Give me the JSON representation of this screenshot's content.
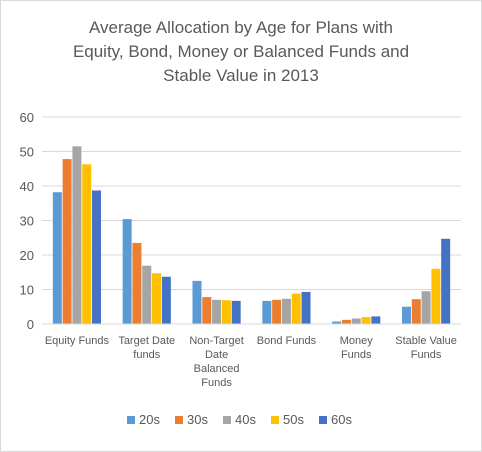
{
  "chart_data": {
    "type": "bar",
    "title_lines": [
      "Average Allocation by Age for Plans with",
      "Equity, Bond, Money or Balanced Funds and",
      "Stable Value in 2013"
    ],
    "categories": [
      [
        "Equity Funds"
      ],
      [
        "Target Date",
        "funds"
      ],
      [
        "Non-Target",
        "Date",
        "Balanced",
        "Funds"
      ],
      [
        "Bond Funds"
      ],
      [
        "Money",
        "Funds"
      ],
      [
        "Stable Value",
        "Funds"
      ]
    ],
    "series": [
      {
        "name": "20s",
        "color": "#5b9bd5",
        "values": [
          38.2,
          30.4,
          12.5,
          6.7,
          0.7,
          5.0
        ]
      },
      {
        "name": "30s",
        "color": "#ed7d31",
        "values": [
          47.8,
          23.5,
          7.8,
          7.0,
          1.2,
          7.2
        ]
      },
      {
        "name": "40s",
        "color": "#a5a5a5",
        "values": [
          51.5,
          16.9,
          7.0,
          7.3,
          1.6,
          9.5
        ]
      },
      {
        "name": "50s",
        "color": "#ffc000",
        "values": [
          46.3,
          14.7,
          6.9,
          8.8,
          2.0,
          16.0
        ]
      },
      {
        "name": "60s",
        "color": "#4472c4",
        "values": [
          38.7,
          13.7,
          6.7,
          9.3,
          2.2,
          24.7
        ]
      }
    ],
    "ylim": [
      0,
      60
    ],
    "yticks": [
      "0",
      "10",
      "20",
      "30",
      "40",
      "50",
      "60"
    ],
    "grid": true,
    "legend_position": "bottom"
  }
}
